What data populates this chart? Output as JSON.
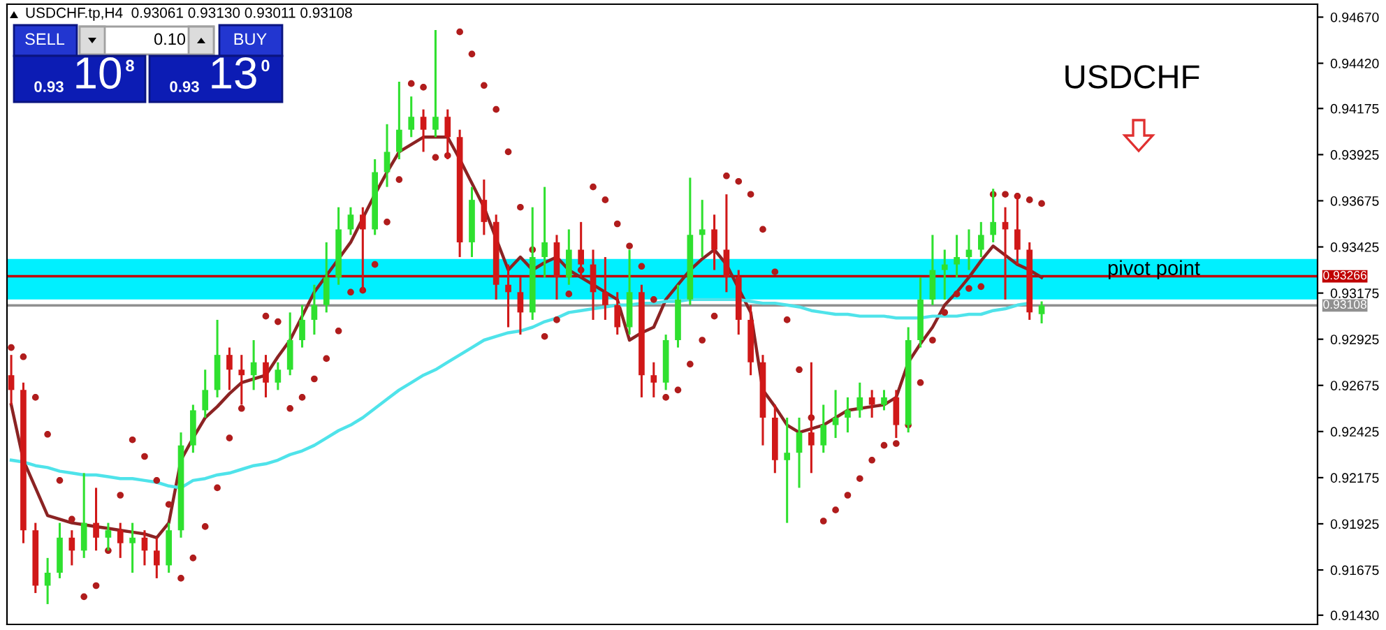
{
  "chart_data": {
    "type": "candlestick",
    "title": "USDCHF",
    "categories": [
      null,
      null,
      null,
      null,
      null,
      null,
      null,
      null,
      null,
      null,
      null,
      null,
      null,
      null,
      null,
      null,
      null,
      null,
      null,
      null,
      null,
      null,
      null,
      null,
      null,
      null,
      null,
      null,
      null,
      null,
      null,
      null,
      null,
      null,
      null,
      null,
      null,
      null,
      null,
      null,
      null,
      null,
      null,
      null,
      null,
      null,
      null,
      null,
      null,
      null,
      null,
      null,
      null,
      null,
      null,
      null,
      null,
      null,
      null,
      null,
      null,
      null,
      null,
      null,
      null,
      null,
      null,
      null,
      null,
      null,
      null,
      null,
      null,
      null,
      null,
      null,
      null,
      null,
      null,
      null,
      null,
      null,
      null,
      null,
      null,
      null
    ],
    "ohlc": [
      [
        0.9273,
        0.9284,
        0.9257,
        0.9265
      ],
      [
        0.9265,
        0.9269,
        0.9182,
        0.9189
      ],
      [
        0.9189,
        0.9193,
        0.9155,
        0.9159
      ],
      [
        0.9159,
        0.9174,
        0.9149,
        0.9166
      ],
      [
        0.9166,
        0.9193,
        0.9163,
        0.9185
      ],
      [
        0.9185,
        0.9189,
        0.917,
        0.9178
      ],
      [
        0.9178,
        0.922,
        0.9174,
        0.9193
      ],
      [
        0.9193,
        0.9212,
        0.9178,
        0.9185
      ],
      [
        0.9185,
        0.9193,
        0.9178,
        0.9189
      ],
      [
        0.9189,
        0.9193,
        0.9174,
        0.9182
      ],
      [
        0.9182,
        0.9193,
        0.9166,
        0.9185
      ],
      [
        0.9185,
        0.9189,
        0.917,
        0.9178
      ],
      [
        0.9178,
        0.9185,
        0.9163,
        0.917
      ],
      [
        0.917,
        0.9193,
        0.9166,
        0.9189
      ],
      [
        0.9189,
        0.9242,
        0.9185,
        0.9235
      ],
      [
        0.9235,
        0.9257,
        0.9231,
        0.9254
      ],
      [
        0.9254,
        0.9276,
        0.925,
        0.9265
      ],
      [
        0.9265,
        0.9303,
        0.9261,
        0.9284
      ],
      [
        0.9284,
        0.9288,
        0.9265,
        0.9276
      ],
      [
        0.9276,
        0.9284,
        0.9257,
        0.9273
      ],
      [
        0.9273,
        0.9292,
        0.9265,
        0.928
      ],
      [
        0.928,
        0.9284,
        0.9261,
        0.9269
      ],
      [
        0.9269,
        0.928,
        0.9265,
        0.9276
      ],
      [
        0.9276,
        0.9307,
        0.9273,
        0.9292
      ],
      [
        0.9292,
        0.9311,
        0.9288,
        0.9303
      ],
      [
        0.9303,
        0.9322,
        0.9295,
        0.9311
      ],
      [
        0.9311,
        0.9345,
        0.9307,
        0.9326
      ],
      [
        0.9326,
        0.9364,
        0.9322,
        0.9352
      ],
      [
        0.9352,
        0.9364,
        0.9349,
        0.936
      ],
      [
        0.936,
        0.9364,
        0.9318,
        0.9352
      ],
      [
        0.9352,
        0.939,
        0.9349,
        0.9383
      ],
      [
        0.9383,
        0.9409,
        0.9375,
        0.9394
      ],
      [
        0.9394,
        0.9432,
        0.939,
        0.9406
      ],
      [
        0.9406,
        0.9424,
        0.9402,
        0.9413
      ],
      [
        0.9413,
        0.9417,
        0.9394,
        0.9406
      ],
      [
        0.9406,
        0.946,
        0.9402,
        0.9413
      ],
      [
        0.9413,
        0.9417,
        0.939,
        0.9402
      ],
      [
        0.9402,
        0.9406,
        0.9337,
        0.9345
      ],
      [
        0.9345,
        0.9375,
        0.9337,
        0.9368
      ],
      [
        0.9368,
        0.9379,
        0.9349,
        0.9356
      ],
      [
        0.9356,
        0.936,
        0.9314,
        0.9322
      ],
      [
        0.9322,
        0.9333,
        0.9299,
        0.9318
      ],
      [
        0.9318,
        0.9326,
        0.9295,
        0.9307
      ],
      [
        0.9307,
        0.9364,
        0.9303,
        0.9337
      ],
      [
        0.9337,
        0.9375,
        0.9326,
        0.9345
      ],
      [
        0.9345,
        0.9349,
        0.9314,
        0.9326
      ],
      [
        0.9326,
        0.9352,
        0.9322,
        0.9341
      ],
      [
        0.9341,
        0.9356,
        0.9326,
        0.9333
      ],
      [
        0.9333,
        0.9341,
        0.9303,
        0.9318
      ],
      [
        0.9318,
        0.9337,
        0.9303,
        0.9311
      ],
      [
        0.9311,
        0.9318,
        0.9295,
        0.9299
      ],
      [
        0.9299,
        0.9341,
        0.9295,
        0.9318
      ],
      [
        0.9318,
        0.9322,
        0.9261,
        0.9273
      ],
      [
        0.9273,
        0.928,
        0.9261,
        0.9269
      ],
      [
        0.9269,
        0.9295,
        0.9265,
        0.9292
      ],
      [
        0.9292,
        0.9322,
        0.9288,
        0.9314
      ],
      [
        0.9314,
        0.938,
        0.9311,
        0.9349
      ],
      [
        0.9349,
        0.9368,
        0.9337,
        0.9352
      ],
      [
        0.9352,
        0.936,
        0.933,
        0.9341
      ],
      [
        0.9341,
        0.9371,
        0.9318,
        0.9326
      ],
      [
        0.9326,
        0.933,
        0.9295,
        0.9303
      ],
      [
        0.9303,
        0.9311,
        0.9273,
        0.928
      ],
      [
        0.928,
        0.9284,
        0.9235,
        0.925
      ],
      [
        0.925,
        0.9257,
        0.922,
        0.9227
      ],
      [
        0.9227,
        0.925,
        0.9193,
        0.9231
      ],
      [
        0.9231,
        0.925,
        0.9212,
        0.9242
      ],
      [
        0.9242,
        0.928,
        0.922,
        0.9235
      ],
      [
        0.9235,
        0.9257,
        0.9231,
        0.9246
      ],
      [
        0.9246,
        0.9265,
        0.9239,
        0.925
      ],
      [
        0.925,
        0.9261,
        0.9242,
        0.9254
      ],
      [
        0.9254,
        0.9269,
        0.925,
        0.9261
      ],
      [
        0.9261,
        0.9265,
        0.925,
        0.9257
      ],
      [
        0.9257,
        0.9265,
        0.9254,
        0.9261
      ],
      [
        0.9261,
        0.9265,
        0.9239,
        0.9246
      ],
      [
        0.9246,
        0.9299,
        0.9242,
        0.9292
      ],
      [
        0.9292,
        0.9326,
        0.9288,
        0.9314
      ],
      [
        0.9314,
        0.9349,
        0.9311,
        0.933
      ],
      [
        0.933,
        0.9341,
        0.9314,
        0.9333
      ],
      [
        0.9333,
        0.9349,
        0.9326,
        0.9337
      ],
      [
        0.9337,
        0.9352,
        0.933,
        0.9341
      ],
      [
        0.9341,
        0.9356,
        0.9337,
        0.9349
      ],
      [
        0.9349,
        0.9374,
        0.9345,
        0.9356
      ],
      [
        0.9356,
        0.9364,
        0.9314,
        0.9352
      ],
      [
        0.9352,
        0.9371,
        0.9333,
        0.9341
      ],
      [
        0.9341,
        0.9345,
        0.9303,
        0.9307
      ],
      [
        0.93061,
        0.9313,
        0.93011,
        0.93108
      ]
    ],
    "colors": [
      "#d01818",
      "#d01818",
      "#d01818",
      "#2fe02f",
      "#2fe02f",
      "#d01818",
      "#2fe02f",
      "#d01818",
      "#2fe02f",
      "#d01818",
      "#2fe02f",
      "#d01818",
      "#d01818",
      "#2fe02f",
      "#2fe02f",
      "#2fe02f",
      "#2fe02f",
      "#2fe02f",
      "#d01818",
      "#d01818",
      "#2fe02f",
      "#d01818",
      "#2fe02f",
      "#2fe02f",
      "#2fe02f",
      "#2fe02f",
      "#2fe02f",
      "#2fe02f",
      "#2fe02f",
      "#d01818",
      "#2fe02f",
      "#2fe02f",
      "#2fe02f",
      "#2fe02f",
      "#d01818",
      "#2fe02f",
      "#d01818",
      "#d01818",
      "#2fe02f",
      "#d01818",
      "#d01818",
      "#d01818",
      "#d01818",
      "#2fe02f",
      "#2fe02f",
      "#d01818",
      "#2fe02f",
      "#d01818",
      "#d01818",
      "#d01818",
      "#d01818",
      "#2fe02f",
      "#d01818",
      "#d01818",
      "#2fe02f",
      "#2fe02f",
      "#2fe02f",
      "#2fe02f",
      "#d01818",
      "#d01818",
      "#d01818",
      "#d01818",
      "#d01818",
      "#d01818",
      "#2fe02f",
      "#2fe02f",
      "#d01818",
      "#2fe02f",
      "#2fe02f",
      "#2fe02f",
      "#2fe02f",
      "#d01818",
      "#2fe02f",
      "#d01818",
      "#2fe02f",
      "#2fe02f",
      "#2fe02f",
      "#2fe02f",
      "#2fe02f",
      "#2fe02f",
      "#2fe02f",
      "#2fe02f",
      "#d01818",
      "#d01818",
      "#d01818",
      "#2fe02f"
    ],
    "series": [
      {
        "type": "line",
        "color": "#8b2323",
        "values": [
          0.9257,
          0.9227,
          0.9212,
          0.9197,
          0.9195,
          0.9193,
          0.9192,
          0.9191,
          0.919,
          0.9189,
          0.9188,
          0.9187,
          0.9185,
          0.9193,
          0.9227,
          0.9239,
          0.925,
          0.9256,
          0.9263,
          0.9269,
          0.9271,
          0.9273,
          0.9283,
          0.9292,
          0.9305,
          0.9318,
          0.9327,
          0.9336,
          0.9345,
          0.9358,
          0.9371,
          0.9383,
          0.9394,
          0.9398,
          0.9402,
          0.9402,
          0.9402,
          0.939,
          0.9377,
          0.9364,
          0.9347,
          0.933,
          0.9337,
          0.933,
          0.9334,
          0.9337,
          0.933,
          0.9326,
          0.9322,
          0.9318,
          0.9314,
          0.9292,
          0.9296,
          0.9299,
          0.9314,
          0.9322,
          0.933,
          0.9336,
          0.9341,
          0.9333,
          0.932,
          0.9307,
          0.9265,
          0.9256,
          0.9246,
          0.9242,
          0.9244,
          0.9246,
          0.925,
          0.9254,
          0.9255,
          0.9256,
          0.9257,
          0.9261,
          0.928,
          0.929,
          0.9299,
          0.9311,
          0.9318,
          0.9326,
          0.9335,
          0.9343,
          0.9338,
          0.9333,
          0.933,
          0.9326
        ]
      },
      {
        "type": "line",
        "color": "#4fe3ea",
        "values": [
          0.9227,
          0.9226,
          0.9224,
          0.9223,
          0.9221,
          0.922,
          0.9219,
          0.9219,
          0.9218,
          0.9217,
          0.9217,
          0.9216,
          0.9215,
          0.9213,
          0.9212,
          0.9216,
          0.9217,
          0.9219,
          0.922,
          0.9222,
          0.9224,
          0.9225,
          0.9227,
          0.923,
          0.9232,
          0.9235,
          0.9239,
          0.9243,
          0.9246,
          0.925,
          0.9255,
          0.926,
          0.9265,
          0.9269,
          0.9273,
          0.9276,
          0.928,
          0.9284,
          0.9288,
          0.9292,
          0.9294,
          0.9296,
          0.9297,
          0.9299,
          0.9302,
          0.9304,
          0.9307,
          0.9308,
          0.9309,
          0.931,
          0.9311,
          0.9311,
          0.9312,
          0.9312,
          0.9313,
          0.9313,
          0.9314,
          0.9314,
          0.9314,
          0.9314,
          0.9314,
          0.9313,
          0.9312,
          0.9312,
          0.9311,
          0.931,
          0.9308,
          0.9307,
          0.9306,
          0.9306,
          0.9305,
          0.9305,
          0.9305,
          0.9304,
          0.9304,
          0.9304,
          0.9305,
          0.9305,
          0.9305,
          0.9306,
          0.9306,
          0.9308,
          0.9309,
          0.9311,
          0.9312,
          null
        ]
      },
      {
        "type": "scatter",
        "color": "#b01c1c",
        "values": [
          0.9288,
          0.9283,
          0.9261,
          0.9241,
          0.9216,
          0.9195,
          0.9153,
          0.9159,
          0.9178,
          0.9208,
          0.9238,
          0.9229,
          0.9216,
          0.9203,
          0.9163,
          0.9174,
          0.9191,
          0.9212,
          0.9239,
          0.9255,
          null,
          0.9305,
          0.9302,
          0.9255,
          0.9261,
          0.9271,
          0.9282,
          0.9297,
          0.9318,
          0.9319,
          0.9333,
          0.9356,
          0.9379,
          0.9431,
          0.9429,
          0.9391,
          0.9392,
          0.9459,
          0.9447,
          0.943,
          0.9417,
          0.9394,
          0.9364,
          0.9341,
          0.9294,
          0.9303,
          0.9317,
          0.933,
          0.9375,
          0.9368,
          0.9355,
          0.9343,
          0.9332,
          0.9314,
          0.9261,
          0.9265,
          0.9279,
          0.9292,
          0.9305,
          0.9381,
          0.9378,
          0.9371,
          0.9352,
          0.9329,
          0.9303,
          0.9276,
          0.925,
          0.9194,
          0.92,
          0.9208,
          0.9217,
          0.9227,
          0.9235,
          0.9236,
          0.9246,
          0.9269,
          0.9292,
          0.9307,
          0.9317,
          0.932,
          0.9321,
          0.9371,
          0.9371,
          0.937,
          0.9368,
          0.9366
        ]
      }
    ],
    "ylim": [
      0.9138,
      0.9474
    ],
    "yticks": [
      {
        "value": 0.9467,
        "label": "0.94670"
      },
      {
        "value": 0.9442,
        "label": "0.94420"
      },
      0.94175,
      0.93925,
      0.93675,
      0.93425,
      0.93175,
      0.92925,
      0.92675,
      0.92425,
      0.92175,
      0.91925,
      0.91675,
      {
        "value": 0.9143,
        "label": "0.91430"
      }
    ],
    "ref_lines": [
      {
        "axis": "y",
        "value": 0.93266,
        "label": "0.93266",
        "color": "#c00000"
      },
      {
        "axis": "y",
        "value": 0.93108,
        "label": "0.93108",
        "color": "#909090"
      }
    ],
    "bands": [
      {
        "axis": "y",
        "from": 0.9314,
        "to": 0.9336,
        "label": "pivot point",
        "color": "#00f0ff"
      }
    ],
    "annotations": [
      "USDCHF.tp,H4  0.93061 0.93130 0.93011 0.93108",
      "SELL",
      "0.10",
      "BUY",
      "0.93",
      "10",
      "8",
      "0.93",
      "13",
      "0"
    ],
    "tick_labels": "y",
    "grid": false,
    "legend": false
  }
}
